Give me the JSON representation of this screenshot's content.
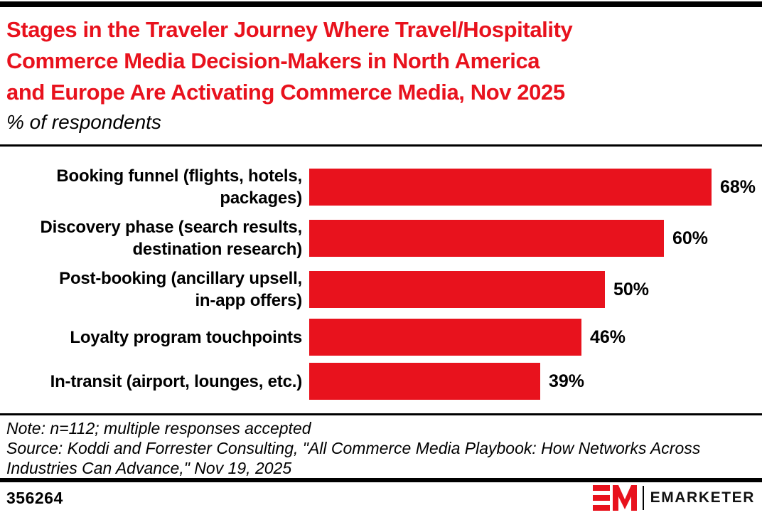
{
  "colors": {
    "accent": "#E8121D",
    "bar_fill": "#E8121D",
    "text": "#000000",
    "background": "#FFFFFF"
  },
  "header": {
    "title_lines": [
      "Stages in the Traveler Journey Where Travel/Hospitality",
      "Commerce Media Decision-Makers in North America",
      "and Europe Are Activating Commerce Media, Nov 2025"
    ],
    "subtitle": "% of respondents"
  },
  "chart_data": {
    "type": "bar",
    "orientation": "horizontal",
    "title": "Stages in the Traveler Journey Where Travel/Hospitality Commerce Media Decision-Makers in North America and Europe Are Activating Commerce Media, Nov 2025",
    "subtitle": "% of respondents",
    "unit": "%",
    "categories": [
      "Booking funnel (flights, hotels,\npackages)",
      "Discovery phase (search results,\ndestination research)",
      "Post-booking (ancillary upsell,\nin-app offers)",
      "Loyalty program touchpoints",
      "In-transit (airport, lounges, etc.)"
    ],
    "values": [
      68,
      60,
      50,
      46,
      39
    ],
    "value_labels": [
      "68%",
      "60%",
      "50%",
      "46%",
      "39%"
    ],
    "xlim": [
      0,
      68
    ],
    "grid": false,
    "legend": false,
    "bar_color": "#E8121D",
    "value_label_position": "right-of-bar"
  },
  "notes": {
    "note": "Note: n=112; multiple responses accepted",
    "source": "Source: Koddi and Forrester Consulting, \"All Commerce Media Playbook: How Networks Across\nIndustries Can Advance,\" Nov 19, 2025"
  },
  "footer": {
    "chart_id": "356264",
    "brand_name": "EMARKETER",
    "logo_monogram": "EM"
  }
}
